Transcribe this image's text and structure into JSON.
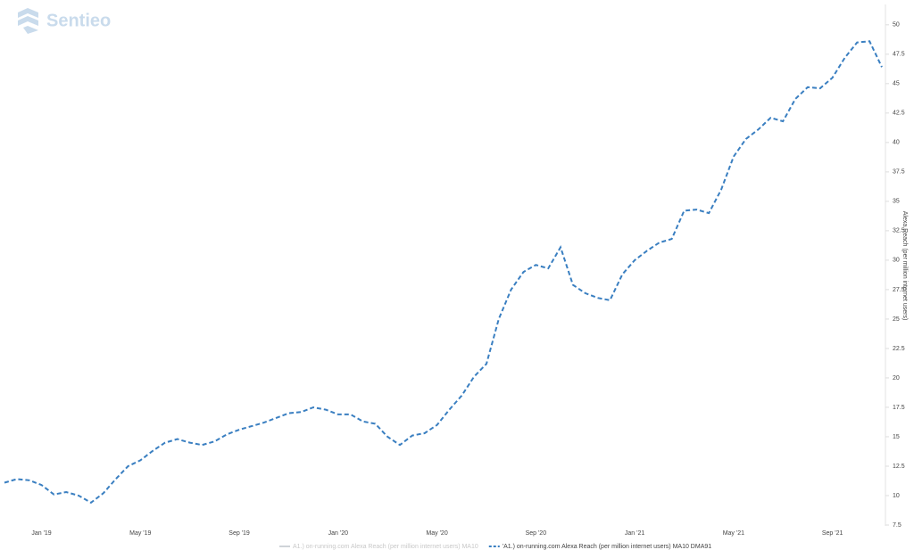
{
  "chart_data": {
    "type": "line",
    "watermark": "Sentieo",
    "y_axis_label": "Alexa Reach (per million internet users)",
    "y_axis_side": "right",
    "grid": false,
    "categories": [
      null,
      null,
      null,
      "Jan '19",
      null,
      null,
      null,
      null,
      null,
      null,
      null,
      "May '19",
      null,
      null,
      null,
      null,
      null,
      null,
      null,
      "Sep '19",
      null,
      null,
      null,
      null,
      null,
      null,
      null,
      "Jan '20",
      null,
      null,
      null,
      null,
      null,
      null,
      null,
      "May '20",
      null,
      null,
      null,
      null,
      null,
      null,
      null,
      "Sep '20",
      null,
      null,
      null,
      null,
      null,
      null,
      null,
      "Jan '21",
      null,
      null,
      null,
      null,
      null,
      null,
      null,
      "May '21",
      null,
      null,
      null,
      null,
      null,
      null,
      null,
      "Sep '21",
      null,
      null,
      null,
      null
    ],
    "series": [
      {
        "name": "A1.) on-running.com Alexa Reach (per million internet users) MA10",
        "color": "#cfd3d8",
        "visible": false
      },
      {
        "name": "'A1.) on-running.com Alexa Reach (per million internet users) MA10 DMA91",
        "color": "#3a7fc1",
        "dashed": true,
        "visible": true,
        "values": [
          11.1,
          11.4,
          11.3,
          10.9,
          10.1,
          10.3,
          10.0,
          9.4,
          10.2,
          11.4,
          12.5,
          13.0,
          13.8,
          14.5,
          14.8,
          14.5,
          14.3,
          14.6,
          15.2,
          15.6,
          15.9,
          16.2,
          16.6,
          17.0,
          17.1,
          17.5,
          17.3,
          16.9,
          16.9,
          16.3,
          16.1,
          15.0,
          14.3,
          15.1,
          15.3,
          16.0,
          17.3,
          18.5,
          20.1,
          21.2,
          25.0,
          27.5,
          29.0,
          29.6,
          29.3,
          31.1,
          27.9,
          27.2,
          26.8,
          26.6,
          28.8,
          30.0,
          30.8,
          31.5,
          31.8,
          34.2,
          34.3,
          34.0,
          36.0,
          38.8,
          40.3,
          41.1,
          42.1,
          41.8,
          43.7,
          44.7,
          44.6,
          45.5,
          47.2,
          48.5,
          48.6,
          46.4
        ]
      }
    ],
    "ylim": [
      7.5,
      51.5
    ],
    "yticks": [
      7.5,
      10,
      12.5,
      15,
      17.5,
      20,
      22.5,
      25,
      27.5,
      30,
      32.5,
      35,
      37.5,
      40,
      42.5,
      45,
      47.5,
      50
    ]
  }
}
